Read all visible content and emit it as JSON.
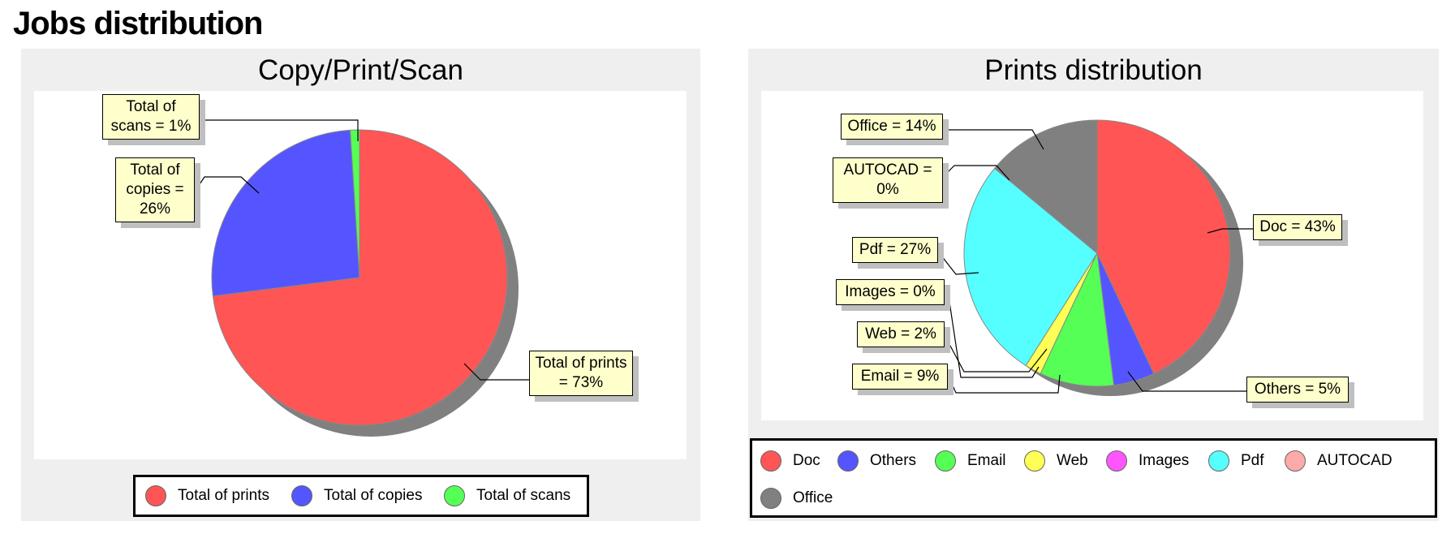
{
  "page": {
    "title": "Jobs distribution"
  },
  "chart_data": [
    {
      "type": "pie",
      "title": "Copy/Print/Scan",
      "categories": [
        "Total of prints",
        "Total of copies",
        "Total of scans"
      ],
      "values": [
        73,
        26,
        1
      ],
      "data_labels": [
        "Total of prints = 73%",
        "Total of copies = 26%",
        "Total of scans = 1%"
      ],
      "colors": [
        "#ff5555",
        "#5555ff",
        "#55ff55"
      ],
      "legend_position": "bottom",
      "legend": [
        {
          "label": "Total of prints",
          "color": "#ff5555"
        },
        {
          "label": "Total of copies",
          "color": "#5555ff"
        },
        {
          "label": "Total of scans",
          "color": "#55ff55"
        }
      ]
    },
    {
      "type": "pie",
      "title": "Prints distribution",
      "categories": [
        "Doc",
        "Others",
        "Email",
        "Web",
        "Images",
        "Pdf",
        "AUTOCAD",
        "Office"
      ],
      "values": [
        43,
        5,
        9,
        2,
        0,
        27,
        0,
        14
      ],
      "data_labels": [
        "Doc = 43%",
        "Others = 5%",
        "Email = 9%",
        "Web = 2%",
        "Images = 0%",
        "Pdf = 27%",
        "AUTOCAD = 0%",
        "Office = 14%"
      ],
      "colors": [
        "#ff5555",
        "#5555ff",
        "#55ff55",
        "#ffff55",
        "#ff55ff",
        "#55ffff",
        "#ffaaaa",
        "#808080"
      ],
      "legend_position": "bottom",
      "legend": [
        {
          "label": "Doc",
          "color": "#ff5555"
        },
        {
          "label": "Others",
          "color": "#5555ff"
        },
        {
          "label": "Email",
          "color": "#55ff55"
        },
        {
          "label": "Web",
          "color": "#ffff55"
        },
        {
          "label": "Images",
          "color": "#ff55ff"
        },
        {
          "label": "Pdf",
          "color": "#55ffff"
        },
        {
          "label": "AUTOCAD",
          "color": "#ffaaaa"
        },
        {
          "label": "Office",
          "color": "#808080"
        }
      ]
    }
  ]
}
